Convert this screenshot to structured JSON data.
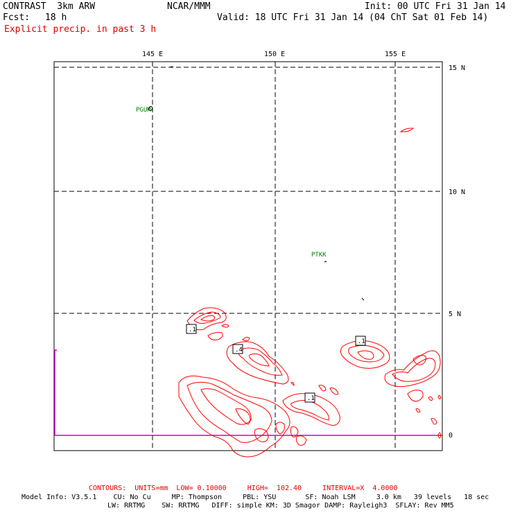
{
  "header": {
    "model": "CONTRAST  3km ARW",
    "org": "NCAR/MMM",
    "init": "Init: 00 UTC Fri 31 Jan 14",
    "fcst_label": "Fcst:",
    "fcst_value": "18 h",
    "valid": "Valid: 18 UTC Fri 31 Jan 14 (04 ChT Sat 01 Feb 14)",
    "field": "Explicit precip. in past 3 h"
  },
  "map": {
    "lon_labels": [
      "145 E",
      "150 E",
      "155 E"
    ],
    "lat_labels": [
      "15 N",
      "10 N",
      "5 N",
      "0"
    ],
    "stations": [
      "PGUM",
      "PTKK"
    ],
    "contour_labels": [
      ".1",
      ".4",
      ".1",
      ".1"
    ],
    "colors": {
      "contour": "#ff0000",
      "equator": "#cc00cc",
      "station": "#008000",
      "grid": "#000000"
    }
  },
  "footer": {
    "contours": "CONTOURS:  UNITS=mm  LOW= 0.10000     HIGH=  102.40     INTERVAL=X  4.0000",
    "model_info_1": "Model Info: V3.5.1    CU: No Cu     MP: Thompson     PBL: YSU       SF: Noah LSM     3.0 km   39 levels   18 sec",
    "model_info_2": "LW: RRTMG    SW: RRTMG   DIFF: simple KM: 3D Smagor DAMP: Rayleigh3  SFLAY: Rev MM5"
  }
}
